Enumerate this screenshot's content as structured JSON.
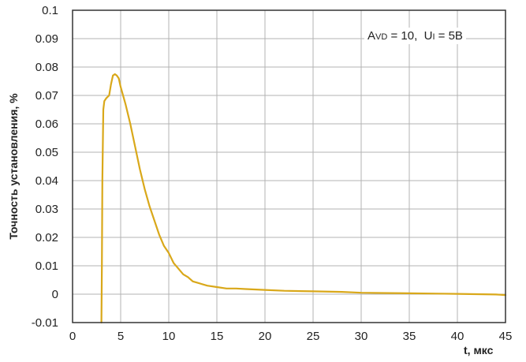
{
  "chart_data": {
    "type": "line",
    "xlabel": "t, мкс",
    "ylabel": "Точность установления, %",
    "xlim": [
      0,
      45
    ],
    "ylim": [
      -0.01,
      0.1
    ],
    "x_ticks": [
      "0",
      "5",
      "10",
      "15",
      "20",
      "25",
      "30",
      "35",
      "40",
      "45"
    ],
    "y_ticks": [
      "-0.01",
      "0",
      "0.01",
      "0.02",
      "0.03",
      "0.04",
      "0.05",
      "0.06",
      "0.07",
      "0.08",
      "0.09",
      "0.1"
    ],
    "grid": true,
    "annotation": {
      "a_letter": "A",
      "a_sub": "VD",
      "a_value": " = 10,  ",
      "u_letter": "U",
      "u_sub": "I",
      "u_value": " = 5B"
    },
    "colors": {
      "line": "#d9a81a",
      "grid": "#b3b3b3",
      "frame": "#333333"
    },
    "series": [
      {
        "x": [
          3.0,
          3.05,
          3.1,
          3.2,
          3.3,
          3.5,
          3.8,
          4.0,
          4.2,
          4.4,
          4.6,
          4.8,
          5.0,
          5.5,
          6.0,
          6.5,
          7.0,
          7.5,
          8.0,
          8.5,
          9.0,
          9.5,
          10.0,
          10.5,
          11.0,
          11.5,
          12.0,
          12.5,
          13.0,
          14.0,
          15.0,
          16.0,
          17.0,
          18.0,
          20.0,
          22.0,
          25.0,
          28.0,
          30.0,
          33.0,
          35.0,
          38.0,
          40.0,
          42.0,
          44.0,
          45.0
        ],
        "y": [
          -0.01,
          0.01,
          0.04,
          0.065,
          0.068,
          0.069,
          0.07,
          0.074,
          0.077,
          0.0775,
          0.077,
          0.076,
          0.073,
          0.067,
          0.06,
          0.052,
          0.044,
          0.037,
          0.031,
          0.026,
          0.021,
          0.017,
          0.0145,
          0.011,
          0.009,
          0.007,
          0.006,
          0.0045,
          0.004,
          0.003,
          0.0025,
          0.002,
          0.002,
          0.0018,
          0.0015,
          0.0012,
          0.001,
          0.0008,
          0.0005,
          0.0004,
          0.0003,
          0.0002,
          0.0001,
          0.0,
          -0.0001,
          -0.0003
        ]
      }
    ]
  }
}
